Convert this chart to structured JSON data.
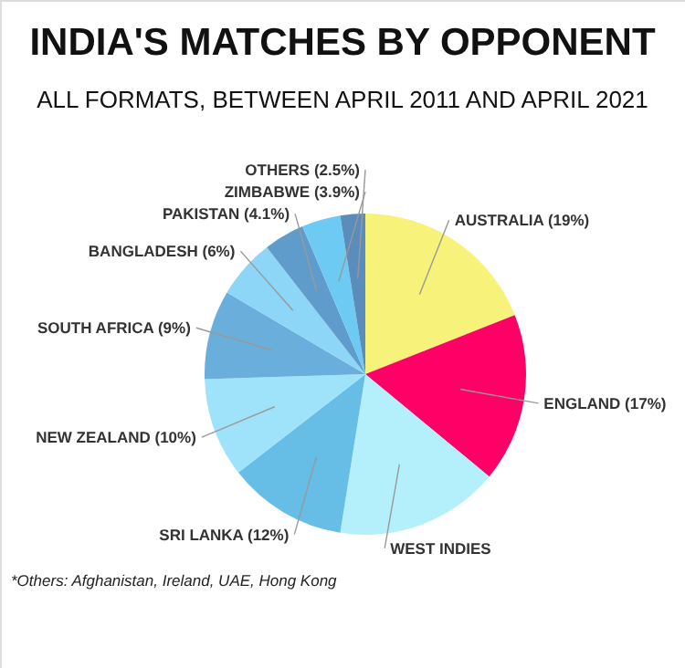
{
  "chart_data": {
    "type": "pie",
    "title": "INDIA'S MATCHES BY OPPONENT",
    "subtitle": "ALL FORMATS, BETWEEN APRIL 2011 AND APRIL 2021",
    "categories": [
      "AUSTRALIA",
      "ENGLAND",
      "WEST INDIES",
      "SRI LANKA",
      "NEW ZEALAND",
      "SOUTH AFRICA",
      "BANGLADESH",
      "PAKISTAN",
      "ZIMBABWE",
      "OTHERS"
    ],
    "values": [
      19,
      17,
      16.5,
      12,
      10,
      9,
      6,
      4.1,
      3.9,
      2.5
    ],
    "value_labels": [
      "(19%)",
      "(17%)",
      null,
      "(12%)",
      "(10%)",
      "(9%)",
      "(6%)",
      "(4.1%)",
      "(3.9%)",
      "(2.5%)"
    ],
    "colors": [
      "#f7f27a",
      "#fe0066",
      "#b3f0fb",
      "#66bde6",
      "#9fe3fa",
      "#6aaedc",
      "#8dd6f7",
      "#5f9ccc",
      "#6dcaf3",
      "#5a8cbc"
    ],
    "annotations": [
      "*Others: Afghanistan, Ireland, UAE, Hong Kong"
    ]
  }
}
